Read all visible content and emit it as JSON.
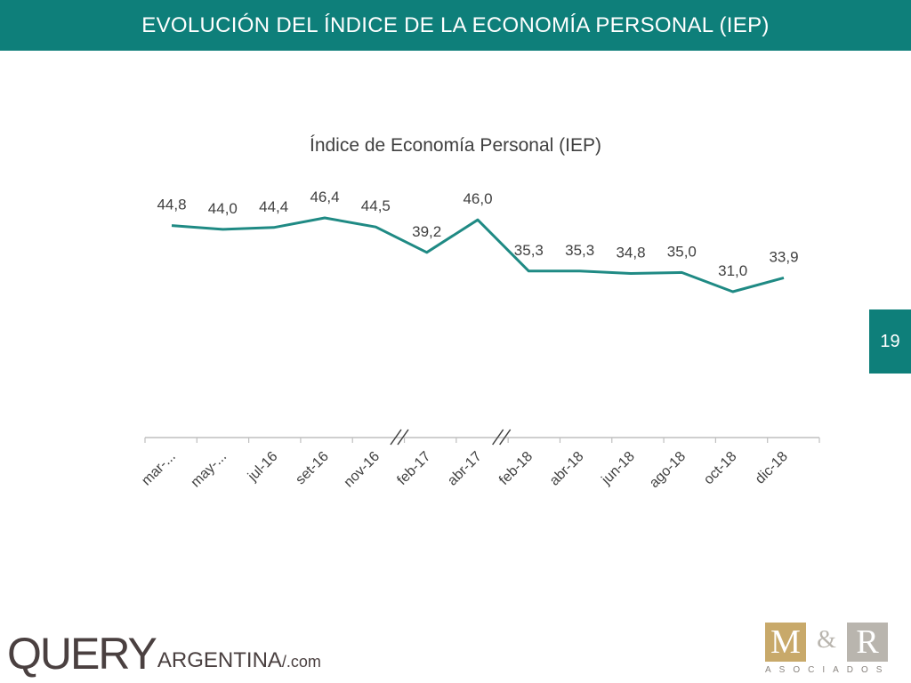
{
  "header": {
    "title": "EVOLUCIÓN DEL ÍNDICE DE LA ECONOMÍA PERSONAL (IEP)"
  },
  "page_number": "19",
  "colors": {
    "accent": "#0e7f7a",
    "series": "#1f8a84"
  },
  "logos": {
    "left": {
      "main": "QUERY",
      "argentina": "ARGENTINA",
      "suffix": "/.com"
    },
    "right": {
      "m": "M",
      "amp": "&",
      "r": "R",
      "sub": "ASOCIADOS"
    }
  },
  "chart_data": {
    "type": "line",
    "title": "Índice de Economía Personal (IEP)",
    "categories": [
      "mar-...",
      "may-...",
      "jul-16",
      "set-16",
      "nov-16",
      "feb-17",
      "abr-17",
      "feb-18",
      "abr-18",
      "jun-18",
      "ago-18",
      "oct-18",
      "dic-18"
    ],
    "values": [
      44.8,
      44.0,
      44.4,
      46.4,
      44.5,
      39.2,
      46.0,
      35.3,
      35.3,
      34.8,
      35.0,
      31.0,
      33.9
    ],
    "data_labels": [
      "44,8",
      "44,0",
      "44,4",
      "46,4",
      "44,5",
      "39,2",
      "46,0",
      "35,3",
      "35,3",
      "34,8",
      "35,0",
      "31,0",
      "33,9"
    ],
    "axis_breaks_after": [
      "nov-16",
      "abr-17"
    ],
    "xlabel": "",
    "ylabel": "",
    "y_axis_visible": false,
    "grid": false,
    "legend": "none"
  }
}
